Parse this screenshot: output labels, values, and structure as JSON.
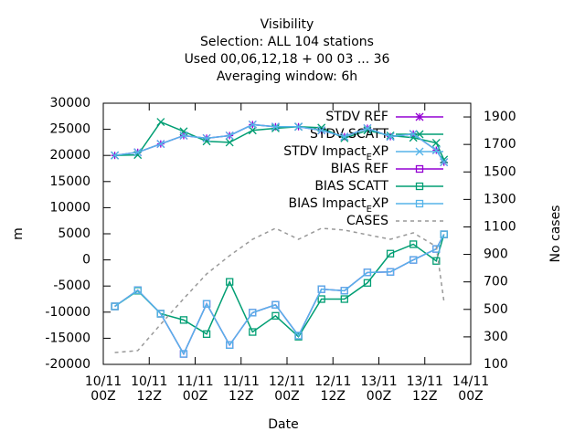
{
  "chart_data": {
    "type": "line",
    "title": [
      "Visibility",
      "Selection: ALL     104 stations",
      "Used  00,06,12,18 + 00 03 ... 36",
      "Averaging window:  6h"
    ],
    "xlabel": "Date",
    "ylabel": "m",
    "y2label": "No cases",
    "x": [
      3,
      9,
      15,
      21,
      27,
      33,
      39,
      45,
      51,
      57,
      63,
      69,
      75,
      81,
      87,
      89
    ],
    "xlim": [
      0,
      96
    ],
    "xticks": [
      {
        "value": 0,
        "label": "10/11\n00Z"
      },
      {
        "value": 12,
        "label": "10/11\n12Z"
      },
      {
        "value": 24,
        "label": "11/11\n00Z"
      },
      {
        "value": 36,
        "label": "11/11\n12Z"
      },
      {
        "value": 48,
        "label": "12/11\n00Z"
      },
      {
        "value": 60,
        "label": "12/11\n12Z"
      },
      {
        "value": 72,
        "label": "13/11\n00Z"
      },
      {
        "value": 84,
        "label": "13/11\n12Z"
      },
      {
        "value": 96,
        "label": "14/11\n00Z"
      }
    ],
    "ylim": [
      -20000,
      30000
    ],
    "yticks": [
      -20000,
      -15000,
      -10000,
      -5000,
      0,
      5000,
      10000,
      15000,
      20000,
      25000,
      30000
    ],
    "y2lim": [
      100,
      2000
    ],
    "y2ticks": [
      100,
      300,
      500,
      700,
      900,
      1100,
      1300,
      1500,
      1700,
      1900
    ],
    "legend": "top-right",
    "series": [
      {
        "name": "STDV REF",
        "color": "#9400d3",
        "marker": "star",
        "values": [
          20000,
          20600,
          22200,
          23800,
          23300,
          23800,
          25900,
          25500,
          25500,
          24800,
          23600,
          25200,
          23600,
          24100,
          21000,
          18700
        ]
      },
      {
        "name": "STDV SCATT",
        "color": "#009e73",
        "marker": "cross",
        "values": [
          20000,
          20100,
          26400,
          24600,
          22700,
          22500,
          24800,
          25200,
          25500,
          25300,
          23300,
          24800,
          23800,
          23400,
          22400,
          19200
        ]
      },
      {
        "name": "STDV Impact_EXP",
        "color": "#56b4e9",
        "marker": "cross",
        "values": [
          20000,
          20600,
          22200,
          23800,
          23300,
          23800,
          25900,
          25500,
          25500,
          24800,
          23600,
          25200,
          23600,
          24100,
          21000,
          18700
        ]
      },
      {
        "name": "BIAS REF",
        "color": "#9400d3",
        "marker": "box",
        "values": [
          -8900,
          -5800,
          -10300,
          -18000,
          -8400,
          -16300,
          -10100,
          -8600,
          -14500,
          -5600,
          -5900,
          -2400,
          -2300,
          0,
          2100,
          4900
        ]
      },
      {
        "name": "BIAS SCATT",
        "color": "#009e73",
        "marker": "box",
        "values": [
          -8900,
          -5900,
          -10300,
          -11500,
          -14200,
          -4200,
          -13800,
          -10700,
          -14700,
          -7500,
          -7500,
          -4400,
          1200,
          3000,
          -200,
          4900
        ]
      },
      {
        "name": "BIAS Impact_EXP",
        "color": "#56b4e9",
        "marker": "box",
        "values": [
          -8900,
          -5800,
          -10300,
          -18000,
          -8400,
          -16300,
          -10100,
          -8600,
          -14500,
          -5600,
          -5900,
          -2400,
          -2300,
          0,
          2100,
          4900
        ]
      },
      {
        "name": "CASES",
        "color": "#999999",
        "dashed": true,
        "axis": "y2",
        "values": [
          186,
          200,
          392,
          578,
          758,
          891,
          1010,
          1090,
          1010,
          1090,
          1077,
          1043,
          1010,
          1057,
          957,
          558
        ]
      }
    ]
  }
}
